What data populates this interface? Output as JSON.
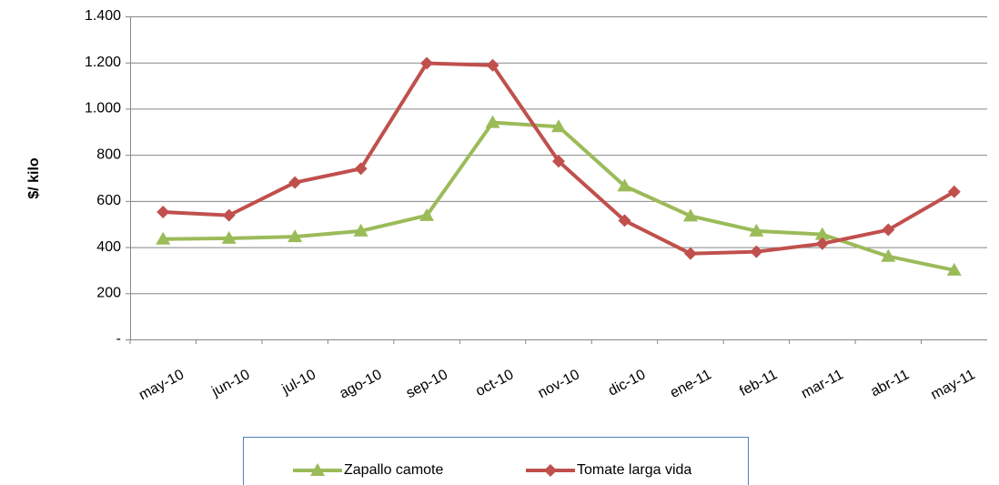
{
  "chart_data": {
    "type": "line",
    "y_label": "$/ kilo",
    "categories": [
      "may-10",
      "jun-10",
      "jul-10",
      "ago-10",
      "sep-10",
      "oct-10",
      "nov-10",
      "dic-10",
      "ene-11",
      "feb-11",
      "mar-11",
      "abr-11",
      "may-11"
    ],
    "series": [
      {
        "name": "Zapallo camote",
        "color": "#9bbb59",
        "marker": "triangle",
        "values": [
          435,
          438,
          445,
          470,
          537,
          940,
          922,
          665,
          535,
          470,
          455,
          360,
          300
        ]
      },
      {
        "name": "Tomate larga vida",
        "color": "#c0504d",
        "marker": "diamond",
        "values": [
          552,
          538,
          680,
          740,
          1197,
          1188,
          772,
          515,
          372,
          380,
          415,
          475,
          640
        ]
      }
    ],
    "ylim": [
      0,
      1400
    ],
    "yticks": [
      {
        "value": 0,
        "label": "-"
      },
      200,
      400,
      600,
      800,
      {
        "value": 1000,
        "label": "1.000"
      },
      {
        "value": 1200,
        "label": "1.200"
      },
      {
        "value": 1400,
        "label": "1.400"
      }
    ],
    "grid": true,
    "legend": "bottom"
  }
}
